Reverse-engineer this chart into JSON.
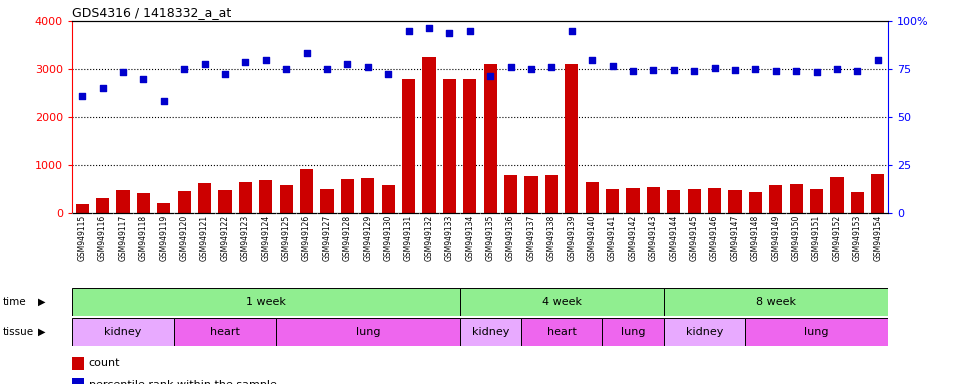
{
  "title": "GDS4316 / 1418332_a_at",
  "samples": [
    "GSM949115",
    "GSM949116",
    "GSM949117",
    "GSM949118",
    "GSM949119",
    "GSM949120",
    "GSM949121",
    "GSM949122",
    "GSM949123",
    "GSM949124",
    "GSM949125",
    "GSM949126",
    "GSM949127",
    "GSM949128",
    "GSM949129",
    "GSM949130",
    "GSM949131",
    "GSM949132",
    "GSM949133",
    "GSM949134",
    "GSM949135",
    "GSM949136",
    "GSM949137",
    "GSM949138",
    "GSM949139",
    "GSM949140",
    "GSM949141",
    "GSM949142",
    "GSM949143",
    "GSM949144",
    "GSM949145",
    "GSM949146",
    "GSM949147",
    "GSM949148",
    "GSM949149",
    "GSM949150",
    "GSM949151",
    "GSM949152",
    "GSM949153",
    "GSM949154"
  ],
  "counts": [
    180,
    310,
    490,
    420,
    220,
    470,
    630,
    490,
    650,
    680,
    580,
    920,
    510,
    710,
    740,
    590,
    2800,
    3250,
    2800,
    2800,
    3100,
    790,
    780,
    800,
    3100,
    640,
    500,
    520,
    550,
    490,
    510,
    530,
    490,
    430,
    580,
    600,
    500,
    750,
    430,
    820
  ],
  "percentile": [
    2450,
    2600,
    2950,
    2800,
    2330,
    3000,
    3100,
    2900,
    3150,
    3180,
    3000,
    3330,
    3000,
    3100,
    3050,
    2900,
    3800,
    3850,
    3750,
    3800,
    2850,
    3050,
    3000,
    3050,
    3800,
    3180,
    3070,
    2960,
    2980,
    2980,
    2960,
    3020,
    2980,
    3000,
    2960,
    2960,
    2950,
    3010,
    2970,
    3180
  ],
  "bar_color": "#CC0000",
  "dot_color": "#0000CC",
  "ylim_left": [
    0,
    4000
  ],
  "ylim_right": [
    0,
    100
  ],
  "yticks_left": [
    0,
    1000,
    2000,
    3000,
    4000
  ],
  "yticks_right": [
    0,
    25,
    50,
    75,
    100
  ],
  "grid_values": [
    1000,
    2000,
    3000
  ],
  "time_groups": [
    {
      "label": "1 week",
      "start": 0,
      "end": 19
    },
    {
      "label": "4 week",
      "start": 19,
      "end": 29
    },
    {
      "label": "8 week",
      "start": 29,
      "end": 40
    }
  ],
  "tissue_groups": [
    {
      "label": "kidney",
      "start": 0,
      "end": 5,
      "color": "#E8AAFF"
    },
    {
      "label": "heart",
      "start": 5,
      "end": 10,
      "color": "#EE66EE"
    },
    {
      "label": "lung",
      "start": 10,
      "end": 19,
      "color": "#EE66EE"
    },
    {
      "label": "kidney",
      "start": 19,
      "end": 22,
      "color": "#E8AAFF"
    },
    {
      "label": "heart",
      "start": 22,
      "end": 26,
      "color": "#EE66EE"
    },
    {
      "label": "lung",
      "start": 26,
      "end": 29,
      "color": "#EE66EE"
    },
    {
      "label": "kidney",
      "start": 29,
      "end": 33,
      "color": "#E8AAFF"
    },
    {
      "label": "lung",
      "start": 33,
      "end": 40,
      "color": "#EE66EE"
    }
  ],
  "time_color": "#90EE90",
  "xtick_bg_color": "#D8D8D8"
}
